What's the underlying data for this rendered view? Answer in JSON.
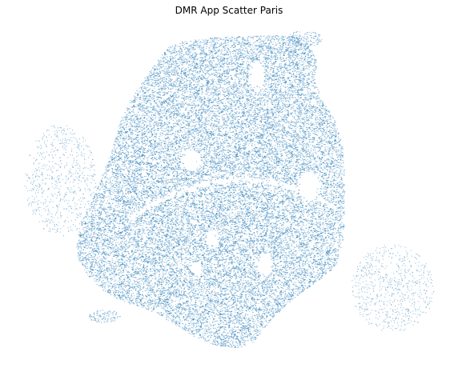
{
  "chart_data": {
    "type": "scatter",
    "title": "DMR App Scatter Paris",
    "xlabel": "",
    "ylabel": "",
    "axes_visible": false,
    "grid": false,
    "legend": "none",
    "marker_color": "#1f77b4",
    "series": [
      {
        "density_points": [
          {
            "lon": 2.27,
            "lat": 48.88
          },
          {
            "lon": 2.29,
            "lat": 48.895
          },
          {
            "lon": 2.31,
            "lat": 48.899
          },
          {
            "lon": 2.33,
            "lat": 48.901
          },
          {
            "lon": 2.35,
            "lat": 48.901
          },
          {
            "lon": 2.37,
            "lat": 48.9
          },
          {
            "lon": 2.39,
            "lat": 48.896
          },
          {
            "lon": 2.405,
            "lat": 48.886
          },
          {
            "lon": 2.41,
            "lat": 48.87
          },
          {
            "lon": 2.414,
            "lat": 48.85
          },
          {
            "lon": 2.415,
            "lat": 48.835
          },
          {
            "lon": 2.4,
            "lat": 48.825
          },
          {
            "lon": 2.38,
            "lat": 48.822
          },
          {
            "lon": 2.36,
            "lat": 48.817
          },
          {
            "lon": 2.34,
            "lat": 48.816
          },
          {
            "lon": 2.32,
            "lat": 48.818
          },
          {
            "lon": 2.3,
            "lat": 48.824
          },
          {
            "lon": 2.285,
            "lat": 48.833
          },
          {
            "lon": 2.265,
            "lat": 48.842
          },
          {
            "lon": 2.258,
            "lat": 48.855
          },
          {
            "lon": 2.26,
            "lat": 48.87
          },
          {
            "lon": 2.3,
            "lat": 48.87
          },
          {
            "lon": 2.33,
            "lat": 48.875
          },
          {
            "lon": 2.36,
            "lat": 48.878
          },
          {
            "lon": 2.39,
            "lat": 48.875
          },
          {
            "lon": 2.35,
            "lat": 48.855
          },
          {
            "lon": 2.32,
            "lat": 48.845
          },
          {
            "lon": 2.38,
            "lat": 48.845
          },
          {
            "lon": 2.29,
            "lat": 48.85
          },
          {
            "lon": 2.35,
            "lat": 48.83
          }
        ]
      }
    ]
  }
}
